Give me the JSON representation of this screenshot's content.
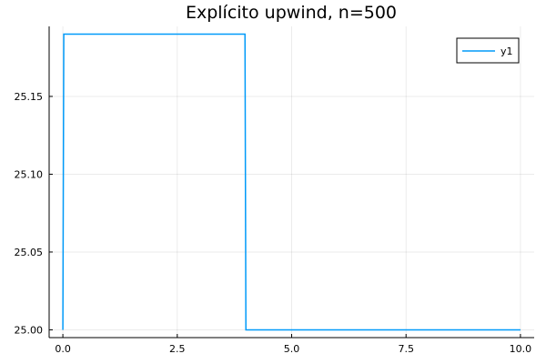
{
  "chart_data": {
    "type": "line",
    "title": "Explícito upwind, n=500",
    "xlabel": "",
    "ylabel": "",
    "xlim": [
      -0.3,
      10.3
    ],
    "ylim": [
      24.995,
      25.195
    ],
    "xticks": [
      0.0,
      2.5,
      5.0,
      7.5,
      10.0
    ],
    "xtick_labels": [
      "0.0",
      "2.5",
      "5.0",
      "7.5",
      "10.0"
    ],
    "yticks": [
      25.0,
      25.05,
      25.1,
      25.15
    ],
    "ytick_labels": [
      "25.00",
      "25.05",
      "25.10",
      "25.15"
    ],
    "grid": true,
    "legend_position": "top-right",
    "series": [
      {
        "name": "y1",
        "color": "#009af9",
        "x": [
          0.0,
          0.02,
          3.98,
          4.0,
          10.0
        ],
        "y": [
          25.0,
          25.19,
          25.19,
          25.0,
          25.0
        ]
      }
    ]
  }
}
